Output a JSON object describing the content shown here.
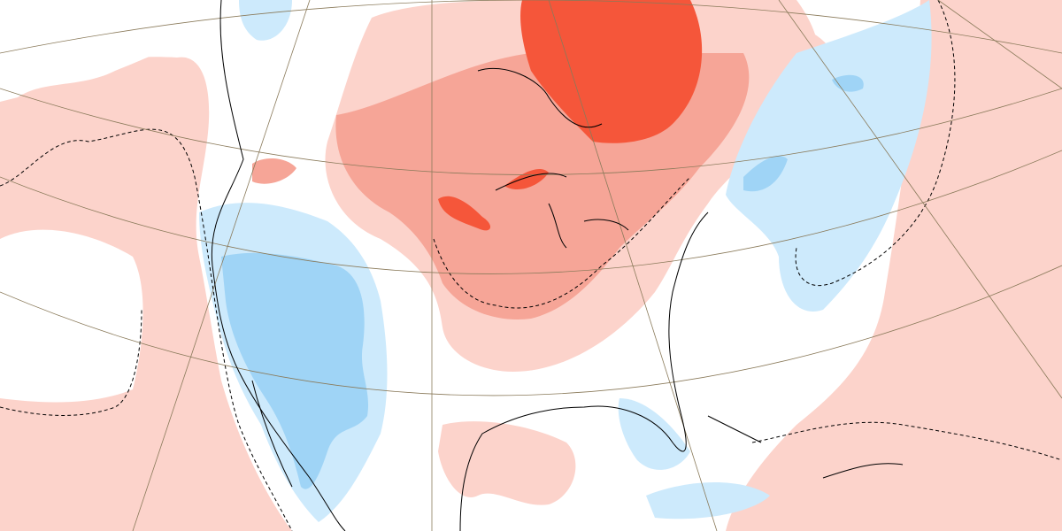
{
  "map": {
    "colors": {
      "background": "#ffffff",
      "warm_light": "#fcd3cb",
      "warm_medium": "#f6a597",
      "warm_strong": "#f5563a",
      "cool_light": "#cdeafc",
      "cool_medium": "#9fd4f6",
      "coastline": "#000000",
      "graticule": "#8a7a5a"
    }
  }
}
